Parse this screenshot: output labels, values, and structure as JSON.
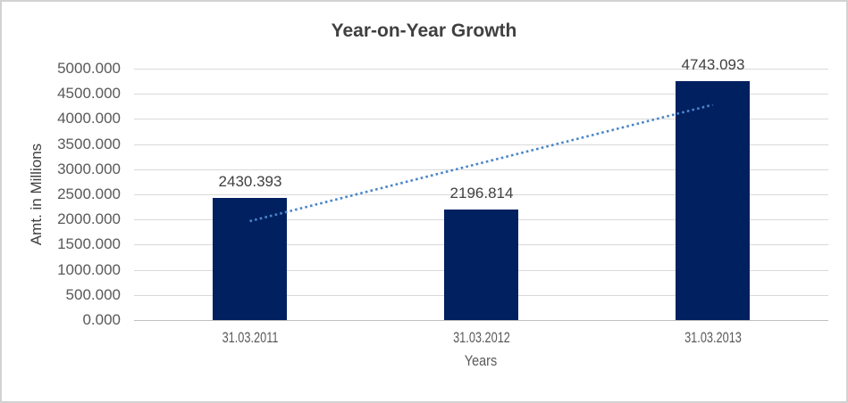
{
  "chart_data": {
    "type": "bar",
    "title": "Year-on-Year Growth",
    "xlabel": "Years",
    "ylabel": "Amt. in Millions",
    "categories": [
      "31.03.2011",
      "31.03.2012",
      "31.03.2013"
    ],
    "values": [
      2430.393,
      2196.814,
      4743.093
    ],
    "data_labels": [
      "2430.393",
      "2196.814",
      "4743.093"
    ],
    "ylim": [
      0,
      5000
    ],
    "ytick_step": 500,
    "ytick_labels": [
      "5000.000",
      "4500.000",
      "4000.000",
      "3500.000",
      "3000.000",
      "2500.000",
      "2000.000",
      "1500.000",
      "1000.000",
      "500.000",
      "0.000"
    ],
    "grid": true,
    "legend": "none",
    "bar_color": "#002060",
    "trendline": {
      "type": "linear",
      "style": "dotted",
      "color": "#4a86c8",
      "start": {
        "category_index": 0,
        "value": 1967
      },
      "end": {
        "category_index": 2,
        "value": 4280
      }
    },
    "colors": {
      "title_text": "#404040",
      "data_label_text": "#404040",
      "axis_text": "#595959",
      "gridline": "#d9d9d9",
      "axis_line": "#bfbfbf",
      "frame_border": "#d2d2d2",
      "background": "#ffffff"
    }
  }
}
